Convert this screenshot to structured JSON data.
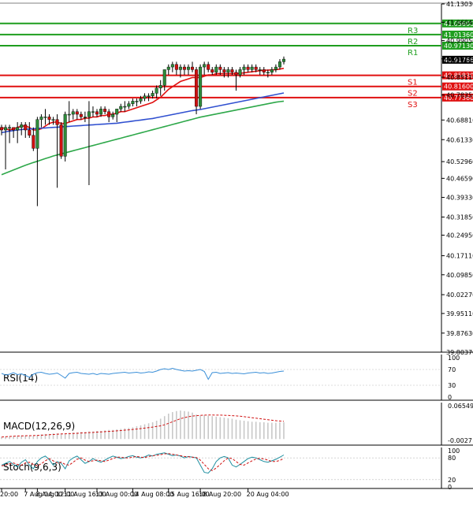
{
  "chart_data": [
    {
      "type": "candlestick",
      "symbol_panel": "price",
      "ylim": [
        39.8037,
        41.1303
      ],
      "price_ticks": [
        "41.13030",
        "41.06040",
        "40.99050",
        "40.92110",
        "40.85110",
        "40.78350",
        "40.68810",
        "40.61330",
        "40.52960",
        "40.46590",
        "40.39330",
        "40.31850",
        "40.24950",
        "40.17110",
        "40.09850",
        "40.02270",
        "39.95110",
        "39.87630",
        "39.80370"
      ],
      "price_tick_values": [
        41.1303,
        41.0604,
        40.9905,
        40.9211,
        40.8511,
        40.7835,
        40.6881,
        40.6133,
        40.5296,
        40.4659,
        40.3933,
        40.3185,
        40.2495,
        40.1711,
        40.0985,
        40.0227,
        39.9511,
        39.8763,
        39.8037
      ],
      "x_tick_labels": [
        "20:00",
        "7 Aug 04:00",
        "8 Aug 12:00",
        "11 Aug 16:00",
        "13 Aug 00:00",
        "14 Aug 08:00",
        "15 Aug 16:00",
        "18 Aug 20:00",
        "20 Aug 04:00"
      ],
      "levels": [
        {
          "name": "R3",
          "value": 41.056,
          "label": "41.05600",
          "color": "#1e9e1e"
        },
        {
          "name": "R2",
          "value": 41.0136,
          "label": "41.01360",
          "color": "#1e9e1e"
        },
        {
          "name": "R1",
          "value": 40.9713,
          "label": "40.97130",
          "color": "#1e9e1e"
        },
        {
          "name": "S1",
          "value": 40.8583,
          "label": "40.85830",
          "color": "#e01010"
        },
        {
          "name": "S2",
          "value": 40.816,
          "label": "40.81600",
          "color": "#e01010"
        },
        {
          "name": "S3",
          "value": 40.7736,
          "label": "40.77360",
          "color": "#e01010"
        }
      ],
      "current_price": {
        "value": 40.91766,
        "label": "40.91766"
      },
      "candles": [
        [
          40.66,
          40.67,
          40.63,
          40.65
        ],
        [
          40.65,
          40.67,
          40.5,
          40.66
        ],
        [
          40.66,
          40.67,
          40.6,
          40.66
        ],
        [
          40.66,
          40.66,
          40.62,
          40.65
        ],
        [
          40.65,
          40.68,
          40.6,
          40.66
        ],
        [
          40.66,
          40.68,
          40.63,
          40.67
        ],
        [
          40.67,
          40.68,
          40.62,
          40.65
        ],
        [
          40.65,
          40.68,
          40.62,
          40.63
        ],
        [
          40.63,
          40.66,
          40.57,
          40.58
        ],
        [
          40.58,
          40.7,
          40.36,
          40.69
        ],
        [
          40.69,
          40.71,
          40.66,
          40.7
        ],
        [
          40.7,
          40.73,
          40.67,
          40.7
        ],
        [
          40.7,
          40.71,
          40.67,
          40.69
        ],
        [
          40.69,
          40.7,
          40.67,
          40.69
        ],
        [
          40.69,
          40.71,
          40.43,
          40.67
        ],
        [
          40.67,
          40.68,
          40.54,
          40.55
        ],
        [
          40.55,
          40.72,
          40.53,
          40.71
        ],
        [
          40.71,
          40.76,
          40.68,
          40.71
        ],
        [
          40.71,
          40.73,
          40.69,
          40.72
        ],
        [
          40.72,
          40.73,
          40.69,
          40.71
        ],
        [
          40.71,
          40.72,
          40.69,
          40.7
        ],
        [
          40.7,
          40.72,
          40.68,
          40.7
        ],
        [
          40.7,
          40.76,
          40.44,
          40.72
        ],
        [
          40.72,
          40.74,
          40.7,
          40.72
        ],
        [
          40.72,
          40.73,
          40.7,
          40.71
        ],
        [
          40.71,
          40.74,
          40.7,
          40.73
        ],
        [
          40.73,
          40.74,
          40.71,
          40.72
        ],
        [
          40.72,
          40.73,
          40.68,
          40.7
        ],
        [
          40.7,
          40.72,
          40.69,
          40.71
        ],
        [
          40.71,
          40.73,
          40.68,
          40.73
        ],
        [
          40.73,
          40.75,
          40.72,
          40.74
        ],
        [
          40.74,
          40.76,
          40.72,
          40.74
        ],
        [
          40.74,
          40.76,
          40.73,
          40.75
        ],
        [
          40.75,
          40.77,
          40.74,
          40.76
        ],
        [
          40.76,
          40.77,
          40.74,
          40.76
        ],
        [
          40.76,
          40.78,
          40.75,
          40.77
        ],
        [
          40.77,
          40.79,
          40.76,
          40.78
        ],
        [
          40.78,
          40.79,
          40.76,
          40.78
        ],
        [
          40.78,
          40.8,
          40.77,
          40.79
        ],
        [
          40.79,
          40.82,
          40.77,
          40.81
        ],
        [
          40.81,
          40.84,
          40.78,
          40.82
        ],
        [
          40.82,
          40.88,
          40.8,
          40.88
        ],
        [
          40.88,
          40.9,
          40.86,
          40.89
        ],
        [
          40.89,
          40.91,
          40.87,
          40.9
        ],
        [
          40.9,
          40.91,
          40.86,
          40.88
        ],
        [
          40.88,
          40.9,
          40.85,
          40.89
        ],
        [
          40.89,
          40.9,
          40.86,
          40.88
        ],
        [
          40.88,
          40.9,
          40.86,
          40.89
        ],
        [
          40.89,
          40.91,
          40.87,
          40.88
        ],
        [
          40.88,
          40.89,
          40.71,
          40.74
        ],
        [
          40.74,
          40.9,
          40.73,
          40.89
        ],
        [
          40.89,
          40.91,
          40.86,
          40.9
        ],
        [
          40.9,
          40.91,
          40.87,
          40.88
        ],
        [
          40.88,
          40.89,
          40.86,
          40.87
        ],
        [
          40.87,
          40.9,
          40.86,
          40.89
        ],
        [
          40.89,
          40.9,
          40.86,
          40.88
        ],
        [
          40.88,
          40.89,
          40.85,
          40.87
        ],
        [
          40.87,
          40.89,
          40.85,
          40.88
        ],
        [
          40.88,
          40.89,
          40.86,
          40.87
        ],
        [
          40.87,
          40.88,
          40.8,
          40.86
        ],
        [
          40.86,
          40.89,
          40.85,
          40.88
        ],
        [
          40.88,
          40.9,
          40.86,
          40.89
        ],
        [
          40.89,
          40.9,
          40.87,
          40.88
        ],
        [
          40.88,
          40.9,
          40.87,
          40.89
        ],
        [
          40.89,
          40.9,
          40.87,
          40.88
        ],
        [
          40.88,
          40.89,
          40.86,
          40.88
        ],
        [
          40.88,
          40.89,
          40.86,
          40.87
        ],
        [
          40.87,
          40.88,
          40.85,
          40.87
        ],
        [
          40.87,
          40.89,
          40.86,
          40.88
        ],
        [
          40.88,
          40.9,
          40.87,
          40.89
        ],
        [
          40.89,
          40.92,
          40.88,
          40.91
        ],
        [
          40.91,
          40.93,
          40.9,
          40.92
        ]
      ],
      "moving_averages": [
        {
          "color": "#e01010",
          "values": [
            40.66,
            40.655,
            40.65,
            40.655,
            40.66,
            40.665,
            40.665,
            40.66,
            40.65,
            40.65,
            40.655,
            40.665,
            40.675,
            40.68,
            40.68,
            40.675,
            40.675,
            40.68,
            40.685,
            40.69,
            40.69,
            40.695,
            40.695,
            40.7,
            40.7,
            40.705,
            40.705,
            40.71,
            40.71,
            40.715,
            40.72,
            40.72,
            40.725,
            40.73,
            40.735,
            40.74,
            40.745,
            40.75,
            40.755,
            40.765,
            40.775,
            40.79,
            40.805,
            40.815,
            40.825,
            40.835,
            40.84,
            40.845,
            40.85,
            40.85,
            40.85,
            40.855,
            40.86,
            40.86,
            40.865,
            40.865,
            40.865,
            40.865,
            40.865,
            40.865,
            40.866,
            40.868,
            40.87,
            40.872,
            40.874,
            40.876,
            40.878,
            40.878,
            40.879,
            40.88,
            40.882,
            40.885
          ]
        },
        {
          "color": "#3050d0",
          "values": [
            40.64,
            40.643,
            40.646,
            40.648,
            40.65,
            40.652,
            40.653,
            40.654,
            40.655,
            40.656,
            40.657,
            40.658,
            40.659,
            40.66,
            40.661,
            40.662,
            40.663,
            40.664,
            40.665,
            40.666,
            40.667,
            40.668,
            40.669,
            40.67,
            40.671,
            40.672,
            40.673,
            40.674,
            40.675,
            40.676,
            40.678,
            40.68,
            40.682,
            40.684,
            40.686,
            40.688,
            40.69,
            40.692,
            40.694,
            40.697,
            40.7,
            40.703,
            40.706,
            40.709,
            40.712,
            40.715,
            40.718,
            40.721,
            40.724,
            40.726,
            40.728,
            40.731,
            40.734,
            40.737,
            40.74,
            40.743,
            40.746,
            40.749,
            40.752,
            40.755,
            40.758,
            40.761,
            40.764,
            40.767,
            40.77,
            40.773,
            40.776,
            40.779,
            40.782,
            40.785,
            40.788,
            40.791
          ]
        },
        {
          "color": "#2ea84a",
          "values": [
            40.48,
            40.486,
            40.492,
            40.498,
            40.504,
            40.51,
            40.516,
            40.521,
            40.526,
            40.531,
            40.536,
            40.541,
            40.546,
            40.551,
            40.555,
            40.559,
            40.563,
            40.567,
            40.571,
            40.575,
            40.579,
            40.583,
            40.587,
            40.591,
            40.595,
            40.599,
            40.603,
            40.607,
            40.611,
            40.615,
            40.619,
            40.623,
            40.627,
            40.631,
            40.635,
            40.639,
            40.643,
            40.647,
            40.651,
            40.655,
            40.659,
            40.663,
            40.667,
            40.671,
            40.675,
            40.679,
            40.683,
            40.687,
            40.691,
            40.695,
            40.699,
            40.702,
            40.705,
            40.708,
            40.711,
            40.714,
            40.717,
            40.72,
            40.723,
            40.726,
            40.729,
            40.732,
            40.735,
            40.738,
            40.741,
            40.744,
            40.747,
            40.75,
            40.753,
            40.756,
            40.758,
            40.76
          ]
        }
      ]
    },
    {
      "type": "line",
      "name": "RSI(14)",
      "ylim": [
        0,
        100
      ],
      "tick_labels": [
        "100",
        "70",
        "30",
        "0"
      ],
      "tick_values": [
        100,
        70,
        30,
        0
      ],
      "values": [
        60,
        56,
        58,
        62,
        57,
        59,
        55,
        50,
        58,
        62,
        63,
        60,
        58,
        59,
        61,
        55,
        48,
        60,
        62,
        63,
        60,
        59,
        58,
        60,
        57,
        60,
        59,
        58,
        60,
        61,
        62,
        63,
        61,
        62,
        63,
        61,
        62,
        64,
        63,
        66,
        70,
        72,
        70,
        73,
        70,
        68,
        66,
        67,
        66,
        68,
        70,
        65,
        45,
        62,
        63,
        60,
        61,
        62,
        60,
        61,
        60,
        59,
        61,
        62,
        63,
        61,
        62,
        60,
        61,
        63,
        65,
        66
      ]
    },
    {
      "type": "bar",
      "name": "MACD(12,26,9)",
      "ylim": [
        -0.0027,
        0.065496
      ],
      "tick_labels": [
        "0.065496",
        "-0.0027"
      ],
      "tick_values": [
        0.065496,
        -0.0027
      ],
      "values": [
        0.004,
        0.005,
        0.005,
        0.006,
        0.006,
        0.007,
        0.007,
        0.006,
        0.006,
        0.008,
        0.009,
        0.01,
        0.01,
        0.011,
        0.011,
        0.01,
        0.01,
        0.012,
        0.013,
        0.013,
        0.014,
        0.014,
        0.015,
        0.015,
        0.016,
        0.016,
        0.017,
        0.018,
        0.018,
        0.019,
        0.02,
        0.021,
        0.022,
        0.023,
        0.025,
        0.027,
        0.029,
        0.031,
        0.033,
        0.036,
        0.04,
        0.045,
        0.05,
        0.053,
        0.055,
        0.056,
        0.055,
        0.054,
        0.052,
        0.048,
        0.046,
        0.047,
        0.046,
        0.045,
        0.044,
        0.043,
        0.042,
        0.041,
        0.04,
        0.038,
        0.037,
        0.036,
        0.035,
        0.034,
        0.034,
        0.033,
        0.033,
        0.032,
        0.032,
        0.032,
        0.033,
        0.033
      ],
      "signal": [
        0.004,
        0.0045,
        0.005,
        0.0055,
        0.006,
        0.0062,
        0.0064,
        0.0066,
        0.0068,
        0.007,
        0.0075,
        0.008,
        0.0085,
        0.009,
        0.0095,
        0.01,
        0.0103,
        0.0106,
        0.0109,
        0.0112,
        0.0118,
        0.0122,
        0.0126,
        0.013,
        0.0135,
        0.014,
        0.0145,
        0.015,
        0.0155,
        0.016,
        0.0167,
        0.0174,
        0.0181,
        0.0188,
        0.0196,
        0.0205,
        0.0215,
        0.0225,
        0.0235,
        0.0248,
        0.026,
        0.028,
        0.031,
        0.034,
        0.037,
        0.04,
        0.042,
        0.044,
        0.045,
        0.046,
        0.0465,
        0.047,
        0.0472,
        0.0472,
        0.0471,
        0.047,
        0.0468,
        0.0465,
        0.046,
        0.0455,
        0.045,
        0.044,
        0.043,
        0.042,
        0.041,
        0.04,
        0.039,
        0.038,
        0.037,
        0.036,
        0.0355,
        0.035
      ]
    },
    {
      "type": "line",
      "name": "Stoch(9,6,3)",
      "ylim": [
        0,
        100
      ],
      "tick_labels": [
        "100",
        "80",
        "20",
        "0"
      ],
      "tick_values": [
        100,
        80,
        20,
        0
      ],
      "k": [
        60,
        65,
        70,
        62,
        55,
        68,
        75,
        60,
        50,
        70,
        80,
        85,
        75,
        60,
        70,
        65,
        50,
        72,
        80,
        85,
        75,
        65,
        70,
        78,
        72,
        68,
        74,
        80,
        85,
        82,
        78,
        80,
        84,
        86,
        82,
        80,
        83,
        88,
        85,
        90,
        92,
        94,
        90,
        86,
        88,
        85,
        80,
        84,
        82,
        80,
        60,
        40,
        38,
        50,
        70,
        80,
        84,
        80,
        60,
        55,
        62,
        70,
        78,
        82,
        80,
        75,
        70,
        68,
        72,
        76,
        82,
        88
      ],
      "d": [
        58,
        60,
        64,
        66,
        62,
        60,
        66,
        68,
        62,
        58,
        64,
        72,
        78,
        72,
        66,
        68,
        62,
        60,
        68,
        76,
        80,
        74,
        70,
        72,
        74,
        72,
        70,
        74,
        78,
        82,
        82,
        80,
        80,
        82,
        84,
        82,
        81,
        84,
        86,
        87,
        89,
        91,
        92,
        90,
        88,
        86,
        84,
        83,
        82,
        81,
        74,
        62,
        50,
        45,
        52,
        62,
        72,
        80,
        78,
        70,
        62,
        60,
        66,
        72,
        77,
        79,
        77,
        74,
        70,
        70,
        73,
        78
      ]
    }
  ]
}
